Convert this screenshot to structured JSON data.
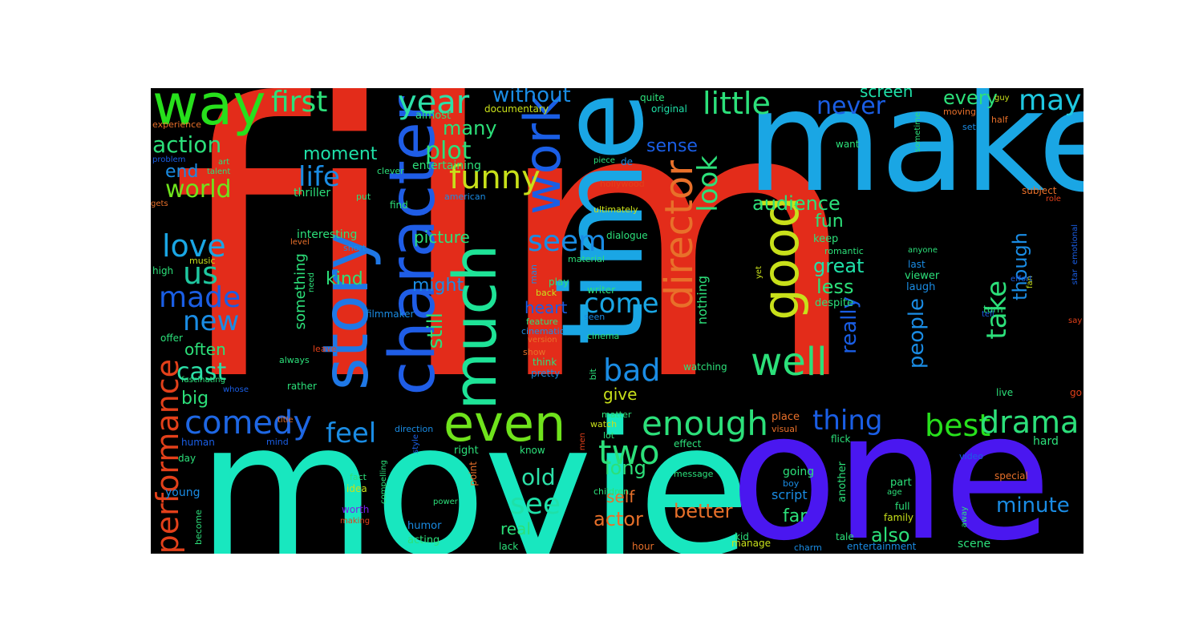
{
  "words": [
    {
      "text": "film",
      "color": "#e32c1a"
    },
    {
      "text": "movie",
      "color": "#18e7bf"
    },
    {
      "text": "one",
      "color": "#4a17f0"
    },
    {
      "text": "make",
      "color": "#1aa6e4"
    },
    {
      "text": "time",
      "color": "#1aa6e4"
    },
    {
      "text": "character",
      "color": "#1f5de6"
    },
    {
      "text": "story",
      "color": "#1f78e6"
    },
    {
      "text": "much",
      "color": "#1ee397"
    },
    {
      "text": "work",
      "color": "#1a5ee5"
    },
    {
      "text": "even",
      "color": "#6fe31c"
    },
    {
      "text": "way",
      "color": "#27e01c"
    },
    {
      "text": "good",
      "color": "#c8e01a"
    },
    {
      "text": "director",
      "color": "#e8702a"
    },
    {
      "text": "well",
      "color": "#2ce07a"
    },
    {
      "text": "comedy",
      "color": "#1e67e4"
    },
    {
      "text": "performance",
      "color": "#e3401a"
    },
    {
      "text": "best",
      "color": "#27e01c"
    },
    {
      "text": "drama",
      "color": "#2ce07a"
    },
    {
      "text": "enough",
      "color": "#2ce07a"
    },
    {
      "text": "two",
      "color": "#2ce07a"
    },
    {
      "text": "year",
      "color": "#2ce0a8"
    },
    {
      "text": "funny",
      "color": "#c8e01a"
    },
    {
      "text": "little",
      "color": "#2ce07a"
    },
    {
      "text": "first",
      "color": "#2ce07a"
    },
    {
      "text": "may",
      "color": "#1fc8e0"
    },
    {
      "text": "never",
      "color": "#1a5ee5"
    },
    {
      "text": "life",
      "color": "#1a8ce4"
    },
    {
      "text": "love",
      "color": "#1aa6e4"
    },
    {
      "text": "us",
      "color": "#1fc8a0"
    },
    {
      "text": "made",
      "color": "#1a5ee5"
    },
    {
      "text": "new",
      "color": "#1a8ce4"
    },
    {
      "text": "action",
      "color": "#2ce07a"
    },
    {
      "text": "world",
      "color": "#6fe31c"
    },
    {
      "text": "end",
      "color": "#1a8ce4"
    },
    {
      "text": "cast",
      "color": "#2ce0a8"
    },
    {
      "text": "bad",
      "color": "#1a8ce4"
    },
    {
      "text": "come",
      "color": "#1aa6e4"
    },
    {
      "text": "seem",
      "color": "#1a8ce4"
    },
    {
      "text": "look",
      "color": "#2ce07a"
    },
    {
      "text": "feel",
      "color": "#1a8ce4"
    },
    {
      "text": "thing",
      "color": "#1a5ee5"
    },
    {
      "text": "see",
      "color": "#1fe0a8"
    },
    {
      "text": "plot",
      "color": "#2ce07a"
    },
    {
      "text": "take",
      "color": "#2ce07a"
    },
    {
      "text": "though",
      "color": "#1a8ce4"
    },
    {
      "text": "audience",
      "color": "#2ce07a"
    },
    {
      "text": "every",
      "color": "#2ce07a"
    },
    {
      "text": "without",
      "color": "#1a8ce4"
    },
    {
      "text": "screen",
      "color": "#1fe0a8"
    },
    {
      "text": "many",
      "color": "#2ce07a"
    },
    {
      "text": "still",
      "color": "#2ce07a"
    },
    {
      "text": "people",
      "color": "#1a8ce4"
    },
    {
      "text": "really",
      "color": "#1a5ee5"
    },
    {
      "text": "minute",
      "color": "#1a8ce4"
    },
    {
      "text": "old",
      "color": "#2ce0a8"
    },
    {
      "text": "long",
      "color": "#2ce07a"
    },
    {
      "text": "better",
      "color": "#e8702a"
    },
    {
      "text": "actor",
      "color": "#e8702a"
    },
    {
      "text": "also",
      "color": "#2ce07a"
    },
    {
      "text": "moment",
      "color": "#1fe0a8"
    },
    {
      "text": "sense",
      "color": "#1a5ee5"
    },
    {
      "text": "fun",
      "color": "#2ce07a"
    },
    {
      "text": "great",
      "color": "#1fe0a8"
    },
    {
      "text": "less",
      "color": "#2ce07a"
    },
    {
      "text": "kind",
      "color": "#2ce07a"
    },
    {
      "text": "might",
      "color": "#1a8ce4"
    },
    {
      "text": "picture",
      "color": "#2ce07a"
    },
    {
      "text": "heart",
      "color": "#1a5ee5"
    },
    {
      "text": "often",
      "color": "#2ce07a"
    },
    {
      "text": "big",
      "color": "#2ce07a"
    },
    {
      "text": "give",
      "color": "#c8e01a"
    },
    {
      "text": "self",
      "color": "#e8702a"
    },
    {
      "text": "far",
      "color": "#2ce07a"
    },
    {
      "text": "real",
      "color": "#2ce07a"
    },
    {
      "text": "something",
      "color": "#2ce07a"
    },
    {
      "text": "nothing",
      "color": "#2ce07a"
    },
    {
      "text": "documentary",
      "color": "#c8e01a"
    },
    {
      "text": "almost",
      "color": "#2ce07a"
    },
    {
      "text": "quite",
      "color": "#2ce07a"
    },
    {
      "text": "original",
      "color": "#1fe0a8"
    },
    {
      "text": "experience",
      "color": "#e8702a"
    },
    {
      "text": "problem",
      "color": "#1a5ee5"
    },
    {
      "text": "art",
      "color": "#2ce07a"
    },
    {
      "text": "talent",
      "color": "#2ce07a"
    },
    {
      "text": "entertaining",
      "color": "#2ce07a"
    },
    {
      "text": "clever",
      "color": "#2ce07a"
    },
    {
      "text": "thriller",
      "color": "#2ce07a"
    },
    {
      "text": "american",
      "color": "#1a8ce4"
    },
    {
      "text": "put",
      "color": "#2ce07a"
    },
    {
      "text": "find",
      "color": "#2ce07a"
    },
    {
      "text": "gets",
      "color": "#e8702a"
    },
    {
      "text": "interesting",
      "color": "#2ce07a"
    },
    {
      "text": "level",
      "color": "#e8702a"
    },
    {
      "text": "short",
      "color": "#1a8ce4"
    },
    {
      "text": "music",
      "color": "#c8e01a"
    },
    {
      "text": "high",
      "color": "#2ce07a"
    },
    {
      "text": "need",
      "color": "#2ce07a"
    },
    {
      "text": "filmmaker",
      "color": "#1a8ce4"
    },
    {
      "text": "offer",
      "color": "#2ce07a"
    },
    {
      "text": "leave",
      "color": "#e3401a"
    },
    {
      "text": "always",
      "color": "#2ce07a"
    },
    {
      "text": "fascinating",
      "color": "#2ce07a"
    },
    {
      "text": "whose",
      "color": "#1a5ee5"
    },
    {
      "text": "rather",
      "color": "#2ce07a"
    },
    {
      "text": "title",
      "color": "#e8702a"
    },
    {
      "text": "mind",
      "color": "#1a5ee5"
    },
    {
      "text": "human",
      "color": "#1a5ee5"
    },
    {
      "text": "day",
      "color": "#2ce07a"
    },
    {
      "text": "young",
      "color": "#1a8ce4"
    },
    {
      "text": "become",
      "color": "#2ce07a"
    },
    {
      "text": "direction",
      "color": "#1a8ce4"
    },
    {
      "text": "style",
      "color": "#1a5ee5"
    },
    {
      "text": "compelling",
      "color": "#2ce07a"
    },
    {
      "text": "fact",
      "color": "#2ce07a"
    },
    {
      "text": "idea",
      "color": "#c8e01a"
    },
    {
      "text": "worth",
      "color": "#7a1ff0"
    },
    {
      "text": "making",
      "color": "#e3401a"
    },
    {
      "text": "power",
      "color": "#2ce07a"
    },
    {
      "text": "humor",
      "color": "#1a8ce4"
    },
    {
      "text": "acting",
      "color": "#2ce07a"
    },
    {
      "text": "lack",
      "color": "#2ce07a"
    },
    {
      "text": "right",
      "color": "#2ce07a"
    },
    {
      "text": "point",
      "color": "#e8702a"
    },
    {
      "text": "know",
      "color": "#2ce07a"
    },
    {
      "text": "hour",
      "color": "#e8702a"
    },
    {
      "text": "children",
      "color": "#2ce07a"
    },
    {
      "text": "message",
      "color": "#2ce07a"
    },
    {
      "text": "kid",
      "color": "#2ce07a"
    },
    {
      "text": "manage",
      "color": "#c8e01a"
    },
    {
      "text": "charm",
      "color": "#1a8ce4"
    },
    {
      "text": "tale",
      "color": "#2ce07a"
    },
    {
      "text": "entertainment",
      "color": "#1a8ce4"
    },
    {
      "text": "scene",
      "color": "#2ce07a"
    },
    {
      "text": "family",
      "color": "#c8e01a"
    },
    {
      "text": "full",
      "color": "#2ce07a"
    },
    {
      "text": "part",
      "color": "#2ce07a"
    },
    {
      "text": "age",
      "color": "#2ce07a"
    },
    {
      "text": "away",
      "color": "#2ce07a"
    },
    {
      "text": "special",
      "color": "#e8702a"
    },
    {
      "text": "go",
      "color": "#e3401a"
    },
    {
      "text": "video",
      "color": "#1a5ee5"
    },
    {
      "text": "hard",
      "color": "#2ce07a"
    },
    {
      "text": "live",
      "color": "#2ce07a"
    },
    {
      "text": "say",
      "color": "#e3401a"
    },
    {
      "text": "turn",
      "color": "#2ce07a"
    },
    {
      "text": "star",
      "color": "#1a5ee5"
    },
    {
      "text": "emotional",
      "color": "#1a5ee5"
    },
    {
      "text": "fan",
      "color": "#c8e01a"
    },
    {
      "text": "tell",
      "color": "#1a5ee5"
    },
    {
      "text": "effort",
      "color": "#1a5ee5"
    },
    {
      "text": "role",
      "color": "#e3401a"
    },
    {
      "text": "subject",
      "color": "#e8702a"
    },
    {
      "text": "half",
      "color": "#e8702a"
    },
    {
      "text": "set",
      "color": "#1a8ce4"
    },
    {
      "text": "want",
      "color": "#2ce07a"
    },
    {
      "text": "sometime",
      "color": "#2ce07a"
    },
    {
      "text": "moving",
      "color": "#e8702a"
    },
    {
      "text": "guy",
      "color": "#c8e01a"
    },
    {
      "text": "anyone",
      "color": "#2ce07a"
    },
    {
      "text": "last",
      "color": "#1a8ce4"
    },
    {
      "text": "viewer",
      "color": "#2ce07a"
    },
    {
      "text": "laugh",
      "color": "#1a8ce4"
    },
    {
      "text": "romantic",
      "color": "#2ce07a"
    },
    {
      "text": "keep",
      "color": "#2ce07a"
    },
    {
      "text": "despite",
      "color": "#2ce07a"
    },
    {
      "text": "yet",
      "color": "#c8e01a"
    },
    {
      "text": "another",
      "color": "#2ce07a"
    },
    {
      "text": "going",
      "color": "#2ce07a"
    },
    {
      "text": "script",
      "color": "#1a8ce4"
    },
    {
      "text": "boy",
      "color": "#1a8ce4"
    },
    {
      "text": "place",
      "color": "#e8702a"
    },
    {
      "text": "visual",
      "color": "#e8702a"
    },
    {
      "text": "flick",
      "color": "#2ce07a"
    },
    {
      "text": "effect",
      "color": "#2ce07a"
    },
    {
      "text": "watch",
      "color": "#c8e01a"
    },
    {
      "text": "men",
      "color": "#e3401a"
    },
    {
      "text": "lot",
      "color": "#2ce07a"
    },
    {
      "text": "matter",
      "color": "#2ce07a"
    },
    {
      "text": "bit",
      "color": "#2ce07a"
    },
    {
      "text": "watching",
      "color": "#2ce07a"
    },
    {
      "text": "pretty",
      "color": "#1a8ce4"
    },
    {
      "text": "think",
      "color": "#2ce07a"
    },
    {
      "text": "show",
      "color": "#e8702a"
    },
    {
      "text": "cinema",
      "color": "#2ce07a"
    },
    {
      "text": "seen",
      "color": "#1a8ce4"
    },
    {
      "text": "cinematic",
      "color": "#1a8ce4"
    },
    {
      "text": "version",
      "color": "#e8702a"
    },
    {
      "text": "feature",
      "color": "#2ce07a"
    },
    {
      "text": "back",
      "color": "#c8e01a"
    },
    {
      "text": "writer",
      "color": "#2ce07a"
    },
    {
      "text": "play",
      "color": "#2ce07a"
    },
    {
      "text": "man",
      "color": "#1a8ce4"
    },
    {
      "text": "material",
      "color": "#2ce07a"
    },
    {
      "text": "dialogue",
      "color": "#2ce07a"
    },
    {
      "text": "ultimately",
      "color": "#c8e01a"
    },
    {
      "text": "hollywood",
      "color": "#e3401a"
    },
    {
      "text": "piece",
      "color": "#2ce07a"
    },
    {
      "text": "de",
      "color": "#1a8ce4"
    },
    {
      "text": "war",
      "color": "#2ce07a"
    }
  ]
}
